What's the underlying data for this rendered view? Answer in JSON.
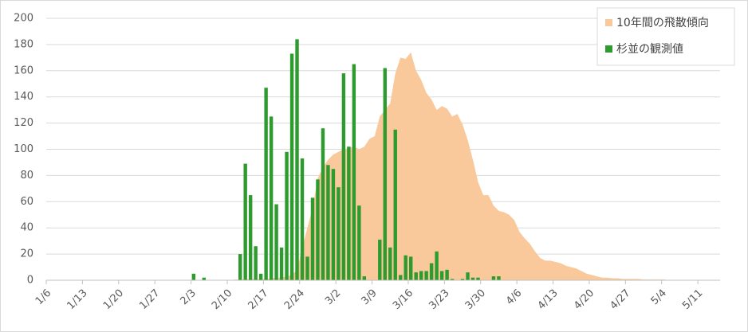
{
  "chart_data": {
    "type": "bar",
    "categories": [
      "1/6",
      null,
      null,
      null,
      null,
      null,
      null,
      "1/13",
      null,
      null,
      null,
      null,
      null,
      null,
      "1/20",
      null,
      null,
      null,
      null,
      null,
      null,
      "1/27",
      null,
      null,
      null,
      null,
      null,
      null,
      "2/3",
      null,
      null,
      null,
      null,
      null,
      null,
      "2/10",
      null,
      null,
      null,
      null,
      null,
      null,
      "2/17",
      null,
      null,
      null,
      null,
      null,
      null,
      "2/24",
      null,
      null,
      null,
      null,
      null,
      null,
      "3/2",
      null,
      null,
      null,
      null,
      null,
      null,
      "3/9",
      null,
      null,
      null,
      null,
      null,
      null,
      "3/16",
      null,
      null,
      null,
      null,
      null,
      null,
      "3/23",
      null,
      null,
      null,
      null,
      null,
      null,
      "3/30",
      null,
      null,
      null,
      null,
      null,
      null,
      "4/6",
      null,
      null,
      null,
      null,
      null,
      null,
      "4/13",
      null,
      null,
      null,
      null,
      null,
      null,
      "4/20",
      null,
      null,
      null,
      null,
      null,
      null,
      "4/27",
      null,
      null,
      null,
      null,
      null,
      null,
      "5/4",
      null,
      null,
      null,
      null,
      null,
      null,
      "5/11",
      null,
      null,
      null,
      null
    ],
    "series": [
      {
        "name": "10年間の飛散傾向",
        "type": "area",
        "color": "#f9c89b",
        "values": [
          0,
          0,
          0,
          0,
          0,
          0,
          0,
          0,
          0,
          0,
          0,
          0,
          0,
          0,
          0,
          0,
          0,
          0,
          0,
          0,
          0,
          0,
          0,
          0,
          0,
          0,
          0,
          0,
          0,
          0,
          0,
          0,
          0,
          0,
          0,
          0,
          0.5,
          0.5,
          1,
          1,
          1,
          1,
          1,
          1.5,
          2,
          2,
          3,
          4,
          8,
          25,
          40,
          55,
          78,
          86,
          92,
          96,
          98,
          100,
          101,
          102,
          100,
          102,
          108,
          110,
          125,
          130,
          135,
          158,
          170,
          169,
          174,
          160,
          153,
          143,
          138,
          130,
          133,
          131,
          125,
          127,
          119,
          107,
          92,
          75,
          65,
          65,
          57,
          53,
          52,
          50,
          46,
          37,
          32,
          28,
          22,
          17,
          15,
          15,
          14,
          13,
          11,
          10,
          9,
          7,
          5,
          4,
          3,
          2,
          2,
          1.5,
          1.5,
          1,
          1,
          1,
          1,
          0.5,
          0.5,
          0.5,
          0.5,
          0.5,
          0,
          0,
          0,
          0,
          0,
          0,
          0,
          0,
          0,
          0,
          0
        ]
      },
      {
        "name": "杉並の観測値",
        "type": "bar",
        "color": "#2e9b2e",
        "values": [
          null,
          null,
          null,
          null,
          null,
          null,
          null,
          null,
          null,
          null,
          null,
          null,
          null,
          null,
          null,
          null,
          null,
          null,
          null,
          null,
          null,
          null,
          null,
          null,
          null,
          null,
          null,
          null,
          5,
          null,
          2,
          null,
          null,
          null,
          null,
          null,
          null,
          20,
          89,
          65,
          26,
          5,
          147,
          125,
          58,
          25,
          98,
          173,
          184,
          93,
          18,
          63,
          77,
          116,
          88,
          85,
          71,
          158,
          102,
          165,
          57,
          3,
          null,
          null,
          31,
          162,
          25,
          115,
          4,
          19,
          18,
          6,
          7,
          7,
          13,
          22,
          7,
          8,
          1,
          null,
          1,
          6,
          2,
          2,
          null,
          null,
          3,
          3,
          null,
          null,
          null,
          null,
          null,
          null,
          null,
          null,
          null,
          null,
          null,
          null,
          null,
          null,
          null,
          null,
          null,
          null,
          null,
          null,
          null,
          null,
          null,
          null,
          null,
          null,
          null,
          null,
          null,
          null,
          null,
          null,
          null,
          null,
          null,
          null,
          null,
          null,
          null,
          null,
          null,
          null,
          null
        ]
      }
    ],
    "ylim": [
      0,
      200
    ],
    "yticks": [
      0,
      20,
      40,
      60,
      80,
      100,
      120,
      140,
      160,
      180,
      200
    ],
    "grid": true,
    "legend": "upper right"
  }
}
